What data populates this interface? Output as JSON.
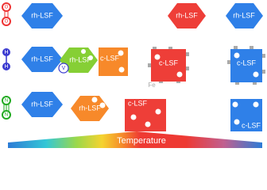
{
  "gases": [
    {
      "symbol": "O"
    },
    {
      "symbol": "H"
    },
    {
      "symbol": "N"
    }
  ],
  "shapes": [
    {
      "label": "rh-LSF"
    },
    {
      "label": "rh-LSF"
    },
    {
      "label": "rh-LSF"
    },
    {
      "label": "rh-LSF"
    },
    {
      "label": "rh-LSF"
    },
    {
      "label": "c-LSF"
    },
    {
      "label": "c-LSF"
    },
    {
      "label": "c-LSF"
    },
    {
      "label": "rh-LSF"
    },
    {
      "label": "rh-LSF"
    },
    {
      "label": "c-LSF"
    },
    {
      "label": "c-LSF"
    }
  ],
  "vacancy_label": "V",
  "iron_label": "Fe",
  "axis_label": "Temperature"
}
